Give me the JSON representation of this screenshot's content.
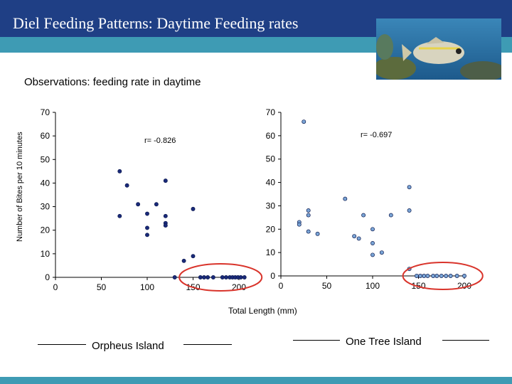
{
  "slide": {
    "title": "Diel Feeding Patterns: Daytime Feeding rates",
    "subtitle": "Observations: feeding rate in daytime",
    "y_axis_label": "Number of Bites per 10 minutes",
    "x_axis_label": "Total Length (mm)",
    "header_color": "#1f3f85",
    "stripe_color": "#3e9bb4",
    "highlight_color": "#d9342b"
  },
  "chart_data": [
    {
      "type": "scatter",
      "title": "Orpheus Island",
      "annotation": "r= -0.826",
      "xlabel": "Total Length (mm)",
      "ylabel": "Number of Bites per 10 minutes",
      "xlim": [
        0,
        200
      ],
      "ylim": [
        0,
        70
      ],
      "xticks": [
        0,
        50,
        100,
        150,
        200
      ],
      "yticks": [
        0,
        10,
        20,
        30,
        40,
        50,
        60,
        70
      ],
      "marker_color": "#1a2a7a",
      "highlight": {
        "x_range": [
          135,
          225
        ],
        "y": 0
      },
      "points": [
        {
          "x": 70,
          "y": 45
        },
        {
          "x": 70,
          "y": 26
        },
        {
          "x": 78,
          "y": 39
        },
        {
          "x": 90,
          "y": 31
        },
        {
          "x": 100,
          "y": 27
        },
        {
          "x": 100,
          "y": 21
        },
        {
          "x": 100,
          "y": 18
        },
        {
          "x": 110,
          "y": 31
        },
        {
          "x": 120,
          "y": 41
        },
        {
          "x": 120,
          "y": 26
        },
        {
          "x": 120,
          "y": 23
        },
        {
          "x": 120,
          "y": 22
        },
        {
          "x": 130,
          "y": 0
        },
        {
          "x": 140,
          "y": 7
        },
        {
          "x": 150,
          "y": 29
        },
        {
          "x": 150,
          "y": 9
        },
        {
          "x": 158,
          "y": 0
        },
        {
          "x": 162,
          "y": 0
        },
        {
          "x": 166,
          "y": 0
        },
        {
          "x": 172,
          "y": 0
        },
        {
          "x": 182,
          "y": 0
        },
        {
          "x": 186,
          "y": 0
        },
        {
          "x": 190,
          "y": 0
        },
        {
          "x": 193,
          "y": 0
        },
        {
          "x": 196,
          "y": 0
        },
        {
          "x": 199,
          "y": 0
        },
        {
          "x": 202,
          "y": 0
        },
        {
          "x": 206,
          "y": 0
        }
      ]
    },
    {
      "type": "scatter",
      "title": "One Tree Island",
      "annotation": "r= -0.697",
      "xlabel": "Total Length (mm)",
      "ylabel": "Number of Bites per 10 minutes",
      "xlim": [
        0,
        200
      ],
      "ylim": [
        0,
        70
      ],
      "xticks": [
        0,
        50,
        100,
        150,
        200
      ],
      "yticks": [
        0,
        10,
        20,
        30,
        40,
        50,
        60,
        70
      ],
      "marker_color": "#7aa5d6",
      "highlight": {
        "x_range": [
          133,
          220
        ],
        "y": 0
      },
      "points": [
        {
          "x": 25,
          "y": 66
        },
        {
          "x": 20,
          "y": 23
        },
        {
          "x": 20,
          "y": 22
        },
        {
          "x": 30,
          "y": 28
        },
        {
          "x": 30,
          "y": 26
        },
        {
          "x": 30,
          "y": 19
        },
        {
          "x": 40,
          "y": 18
        },
        {
          "x": 70,
          "y": 33
        },
        {
          "x": 80,
          "y": 17
        },
        {
          "x": 85,
          "y": 16
        },
        {
          "x": 90,
          "y": 26
        },
        {
          "x": 100,
          "y": 20
        },
        {
          "x": 100,
          "y": 14
        },
        {
          "x": 100,
          "y": 9
        },
        {
          "x": 110,
          "y": 10
        },
        {
          "x": 120,
          "y": 26
        },
        {
          "x": 140,
          "y": 38
        },
        {
          "x": 140,
          "y": 28
        },
        {
          "x": 140,
          "y": 3
        },
        {
          "x": 148,
          "y": 0
        },
        {
          "x": 152,
          "y": 0
        },
        {
          "x": 156,
          "y": 0
        },
        {
          "x": 160,
          "y": 0
        },
        {
          "x": 166,
          "y": 0
        },
        {
          "x": 170,
          "y": 0
        },
        {
          "x": 175,
          "y": 0
        },
        {
          "x": 180,
          "y": 0
        },
        {
          "x": 185,
          "y": 0
        },
        {
          "x": 192,
          "y": 0
        },
        {
          "x": 200,
          "y": 0
        }
      ]
    }
  ]
}
